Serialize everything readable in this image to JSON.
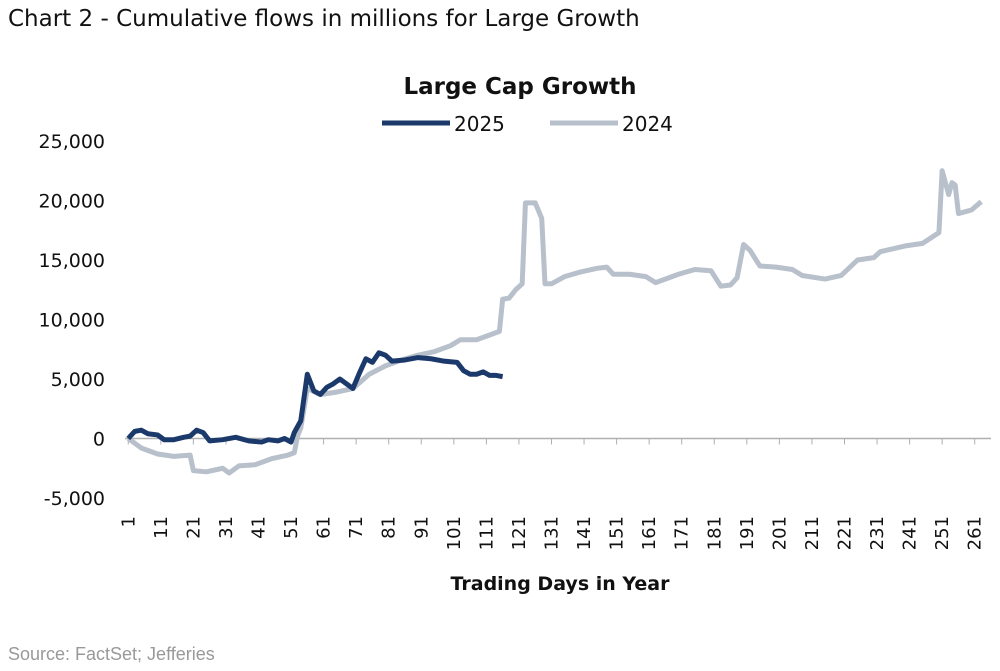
{
  "header": {
    "title": "Chart 2 - Cumulative flows in millions for Large Growth"
  },
  "chart_data": {
    "type": "line",
    "title": "Large Cap Growth",
    "xlabel": "Trading Days in Year",
    "legend": "top",
    "xlim": [
      0,
      266
    ],
    "xticks": [
      1,
      11,
      21,
      31,
      41,
      51,
      61,
      71,
      81,
      91,
      101,
      111,
      121,
      131,
      141,
      151,
      161,
      171,
      181,
      191,
      201,
      211,
      221,
      231,
      241,
      251,
      261
    ],
    "ylim": [
      -5000,
      25000
    ],
    "yticks": [
      {
        "value": -5000,
        "label": "-5,000"
      },
      0,
      {
        "value": 5000,
        "label": "5,000"
      },
      {
        "value": 10000,
        "label": "10,000"
      },
      {
        "value": 15000,
        "label": "15,000"
      },
      {
        "value": 20000,
        "label": "20,000"
      },
      {
        "value": 25000,
        "label": "25,000"
      }
    ],
    "series": [
      {
        "name": "2025",
        "color": "#1b3a6b",
        "x": [
          1,
          3,
          5,
          7,
          10,
          12,
          15,
          18,
          20,
          22,
          24,
          26,
          30,
          34,
          38,
          42,
          44,
          47,
          49,
          51,
          52,
          54,
          56,
          58,
          60,
          62,
          64,
          66,
          68,
          70,
          72,
          74,
          76,
          78,
          80,
          82,
          86,
          90,
          94,
          98,
          102,
          104,
          106,
          108,
          110,
          112,
          114,
          116
        ],
        "values": [
          0,
          600,
          700,
          400,
          300,
          -100,
          -100,
          100,
          200,
          700,
          500,
          -200,
          -100,
          100,
          -200,
          -300,
          -100,
          -200,
          0,
          -300,
          500,
          1500,
          5400,
          4000,
          3700,
          4300,
          4600,
          5000,
          4600,
          4200,
          5500,
          6700,
          6400,
          7200,
          7000,
          6500,
          6600,
          6800,
          6700,
          6500,
          6400,
          5700,
          5400,
          5400,
          5600,
          5300,
          5300,
          5200
        ]
      },
      {
        "name": "2024",
        "color": "#b8c0cb",
        "x": [
          1,
          5,
          10,
          15,
          20,
          21,
          25,
          30,
          32,
          35,
          40,
          45,
          50,
          52,
          53,
          54,
          56,
          60,
          65,
          70,
          75,
          80,
          85,
          90,
          95,
          100,
          103,
          108,
          112,
          115,
          116,
          118,
          120,
          122,
          123,
          126,
          128,
          129,
          131,
          135,
          140,
          145,
          148,
          150,
          155,
          160,
          163,
          170,
          175,
          180,
          183,
          186,
          188,
          190,
          192,
          195,
          200,
          205,
          208,
          215,
          220,
          225,
          230,
          232,
          240,
          245,
          250,
          251,
          253,
          254,
          255,
          256,
          260,
          263
        ],
        "values": [
          0,
          -800,
          -1300,
          -1500,
          -1400,
          -2700,
          -2800,
          -2500,
          -2900,
          -2300,
          -2200,
          -1700,
          -1400,
          -1200,
          200,
          900,
          4200,
          3700,
          3900,
          4200,
          5400,
          6100,
          6600,
          7000,
          7300,
          7800,
          8300,
          8300,
          8700,
          9000,
          11700,
          11800,
          12500,
          13000,
          19800,
          19800,
          18500,
          13000,
          13000,
          13600,
          14000,
          14300,
          14400,
          13800,
          13800,
          13600,
          13100,
          13800,
          14200,
          14100,
          12800,
          12900,
          13500,
          16300,
          15800,
          14500,
          14400,
          14200,
          13700,
          13400,
          13700,
          15000,
          15200,
          15700,
          16200,
          16400,
          17300,
          22500,
          20500,
          21500,
          21300,
          18900,
          19200,
          19900
        ]
      }
    ]
  },
  "footer": {
    "source": "Source: FactSet; Jefferies"
  }
}
